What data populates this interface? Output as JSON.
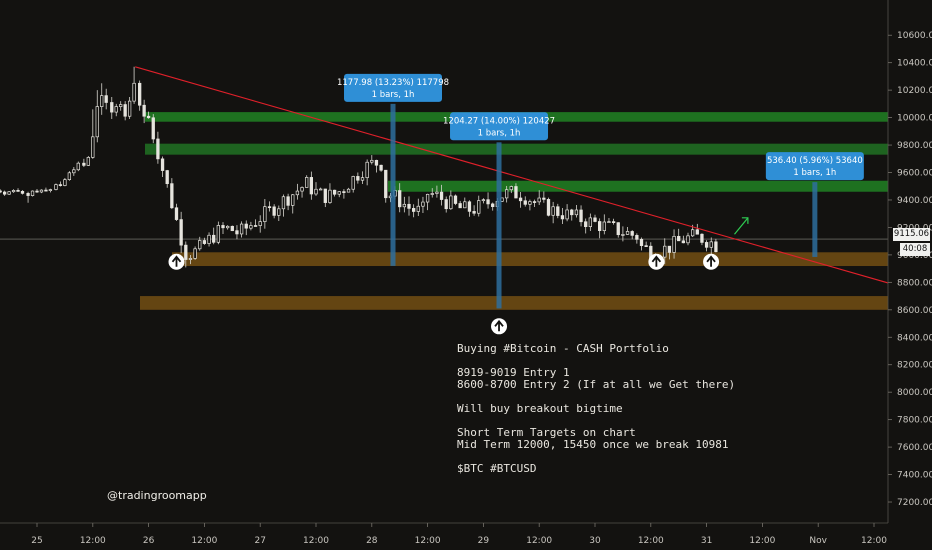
{
  "chart_data": {
    "type": "candlestick",
    "symbol_tags": "$BTC #BTCUSD",
    "y_ticks": [
      10600,
      10400,
      10200,
      10000,
      9800,
      9600,
      9400,
      9200,
      9000,
      8800,
      8600,
      8400,
      8200,
      8000,
      7800,
      7600,
      7400,
      7200
    ],
    "ylim": [
      7120,
      10740
    ],
    "x_ticks": [
      "25",
      "12:00",
      "26",
      "12:00",
      "27",
      "12:00",
      "28",
      "12:00",
      "29",
      "12:00",
      "30",
      "12:00",
      "31",
      "12:00",
      "Nov",
      "12:00"
    ],
    "last_price": "9115.06",
    "countdown": "40:08",
    "zones": [
      {
        "kind": "resistance",
        "low": 9970,
        "high": 10040,
        "color": "#1f7a22"
      },
      {
        "kind": "resistance",
        "low": 9730,
        "high": 9810,
        "color": "#1f6a22"
      },
      {
        "kind": "resistance",
        "low": 9460,
        "high": 9540,
        "color": "#1f7a22"
      },
      {
        "kind": "support",
        "low": 8919,
        "high": 9019,
        "color": "#6b4a12"
      },
      {
        "kind": "support",
        "low": 8600,
        "high": 8700,
        "color": "#6b4a12"
      }
    ],
    "trendline": {
      "from": {
        "day": 25.88,
        "price": 10370
      },
      "to": {
        "day": 32.65,
        "price": 8790
      }
    },
    "measurements": [
      {
        "day": 28.19,
        "low": 8920,
        "high": 10100,
        "text": [
          "1177.98 (13.23%) 117798",
          "1 bars, 1h"
        ]
      },
      {
        "day": 29.14,
        "low": 8610,
        "high": 9820,
        "text": [
          "1204.27 (14.00%) 120427",
          "1 bars, 1h"
        ]
      },
      {
        "day": 31.97,
        "low": 8985,
        "high": 9530,
        "text": [
          "536.40 (5.96%) 53640",
          "1 bars, 1h"
        ]
      }
    ],
    "entry_arrows": [
      {
        "day": 26.25,
        "price": 8950
      },
      {
        "day": 29.14,
        "price": 8480
      },
      {
        "day": 30.55,
        "price": 8950
      },
      {
        "day": 31.04,
        "price": 8950
      }
    ],
    "breakout_arrow": {
      "from": {
        "day": 31.25,
        "price": 9150
      },
      "to": {
        "day": 31.37,
        "price": 9270
      }
    },
    "candles": [
      [
        24.5,
        9481,
        9486,
        9466,
        9473
      ],
      [
        24.54,
        9473,
        9487,
        9458,
        9468
      ],
      [
        24.58,
        9468,
        9475,
        9440,
        9453
      ],
      [
        24.62,
        9453,
        9470,
        9448,
        9466
      ],
      [
        24.67,
        9466,
        9478,
        9450,
        9458
      ],
      [
        24.71,
        9458,
        9468,
        9430,
        9442
      ],
      [
        24.75,
        9442,
        9465,
        9436,
        9460
      ],
      [
        24.79,
        9460,
        9478,
        9452,
        9470
      ],
      [
        24.83,
        9470,
        9485,
        9459,
        9463
      ],
      [
        24.87,
        9463,
        9472,
        9440,
        9448
      ],
      [
        24.92,
        9448,
        9460,
        9380,
        9432
      ],
      [
        24.96,
        9432,
        9470,
        9425,
        9465
      ],
      [
        25.0,
        9465,
        9480,
        9452,
        9458
      ],
      [
        25.04,
        9458,
        9478,
        9450,
        9472
      ],
      [
        25.08,
        9472,
        9490,
        9462,
        9468
      ],
      [
        25.12,
        9468,
        9482,
        9455,
        9476
      ],
      [
        25.17,
        9476,
        9520,
        9470,
        9512
      ],
      [
        25.21,
        9512,
        9535,
        9498,
        9505
      ],
      [
        25.25,
        9505,
        9560,
        9500,
        9548
      ],
      [
        25.29,
        9548,
        9610,
        9540,
        9598
      ],
      [
        25.33,
        9598,
        9640,
        9575,
        9620
      ],
      [
        25.37,
        9620,
        9680,
        9610,
        9668
      ],
      [
        25.42,
        9668,
        9700,
        9640,
        9652
      ],
      [
        25.46,
        9652,
        9720,
        9648,
        9710
      ],
      [
        25.5,
        9710,
        10060,
        9700,
        9860
      ],
      [
        25.54,
        9860,
        10200,
        9820,
        10080
      ],
      [
        25.58,
        10080,
        10250,
        10020,
        10160
      ],
      [
        25.62,
        10160,
        10210,
        10060,
        10110
      ],
      [
        25.67,
        10110,
        10150,
        9990,
        10040
      ],
      [
        25.71,
        10040,
        10100,
        10010,
        10080
      ],
      [
        25.75,
        10080,
        10120,
        10050,
        10095
      ],
      [
        25.79,
        10095,
        10120,
        9980,
        10010
      ],
      [
        25.83,
        10010,
        10150,
        9990,
        10120
      ],
      [
        25.87,
        10120,
        10370,
        10100,
        10250
      ],
      [
        25.92,
        10250,
        10270,
        10050,
        10090
      ],
      [
        25.96,
        10090,
        10130,
        9960,
        10010
      ]
    ]
  },
  "note": {
    "lines": [
      "Buying #Bitcoin - CASH Portfolio",
      "",
      "8919-9019 Entry 1",
      "8600-8700 Entry 2 (If at all we Get there)",
      "",
      "Will buy breakout bigtime",
      "",
      "Short Term Targets on chart",
      "Mid Term 12000, 15450 once we break 10981",
      "",
      "$BTC #BTCUSD"
    ]
  },
  "handle": "@tradingroomapp"
}
